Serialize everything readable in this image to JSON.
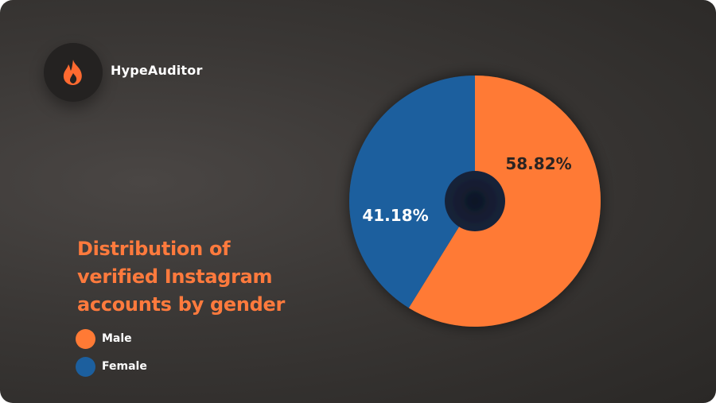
{
  "brand": {
    "name": "HypeAuditor",
    "logo_icon": "flame-icon",
    "logo_color": "#ff6a30"
  },
  "chart_data": {
    "type": "pie",
    "title": [
      "Distribution of",
      "verified Instagram",
      "accounts by gender"
    ],
    "categories": [
      "Male",
      "Female"
    ],
    "values": [
      58.82,
      41.18
    ],
    "data_labels": [
      "58.82%",
      "41.18%"
    ],
    "colors": [
      "#ff7a35",
      "#1c5f9e"
    ],
    "label_colors": [
      "#2b2422",
      "#ffffff"
    ],
    "donut": true,
    "legend_position": "bottom-left"
  }
}
